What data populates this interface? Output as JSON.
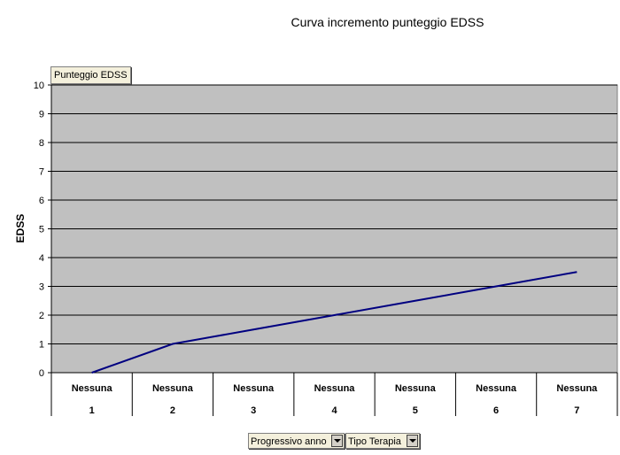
{
  "chart_data": {
    "type": "line",
    "title": "Curva incremento punteggio EDSS",
    "series_tag": "Punteggio EDSS",
    "ylabel": "EDSS",
    "ylim": [
      0,
      10
    ],
    "yticks": [
      "0",
      "1",
      "2",
      "3",
      "4",
      "5",
      "6",
      "7",
      "8",
      "9",
      "10"
    ],
    "categories": [
      {
        "top": "Nessuna",
        "bottom": "1"
      },
      {
        "top": "Nessuna",
        "bottom": "2"
      },
      {
        "top": "Nessuna",
        "bottom": "3"
      },
      {
        "top": "Nessuna",
        "bottom": "4"
      },
      {
        "top": "Nessuna",
        "bottom": "5"
      },
      {
        "top": "Nessuna",
        "bottom": "6"
      },
      {
        "top": "Nessuna",
        "bottom": "7"
      }
    ],
    "series": [
      {
        "values": [
          0,
          1,
          1.5,
          2,
          2.5,
          3,
          3.5
        ]
      }
    ],
    "grid": true,
    "colors": {
      "plot_bg": "#c0c0c0",
      "line": "#000080",
      "grid": "#000000"
    }
  },
  "fields": {
    "progressivo": "Progressivo anno",
    "tipo_terapia": "Tipo Terapia"
  }
}
